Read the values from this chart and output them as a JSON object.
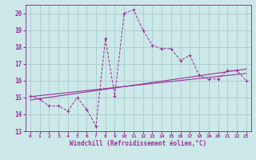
{
  "xlabel": "Windchill (Refroidissement éolien,°C)",
  "bg_color": "#cce8e8",
  "grid_color": "#aacccc",
  "line_color": "#993399",
  "x_data": [
    0,
    1,
    2,
    3,
    4,
    5,
    6,
    7,
    8,
    9,
    10,
    11,
    12,
    13,
    14,
    15,
    16,
    17,
    18,
    19,
    20,
    21,
    22,
    23
  ],
  "y_main": [
    15.1,
    14.9,
    14.5,
    14.5,
    14.2,
    15.0,
    14.3,
    13.3,
    18.5,
    15.1,
    20.0,
    20.2,
    19.0,
    18.1,
    17.9,
    17.9,
    17.2,
    17.5,
    16.3,
    16.1,
    16.1,
    16.6,
    16.6,
    16.0
  ],
  "y_line1": [
    14.85,
    14.93,
    15.01,
    15.09,
    15.17,
    15.25,
    15.33,
    15.41,
    15.49,
    15.57,
    15.65,
    15.73,
    15.81,
    15.89,
    15.97,
    16.05,
    16.13,
    16.21,
    16.29,
    16.37,
    16.45,
    16.53,
    16.61,
    16.69
  ],
  "y_line2": [
    15.05,
    15.11,
    15.17,
    15.23,
    15.29,
    15.35,
    15.41,
    15.47,
    15.53,
    15.59,
    15.65,
    15.71,
    15.77,
    15.83,
    15.89,
    15.95,
    16.01,
    16.07,
    16.13,
    16.19,
    16.25,
    16.31,
    16.37,
    16.43
  ],
  "xlim": [
    -0.5,
    23.5
  ],
  "ylim": [
    13,
    20.5
  ],
  "yticks": [
    13,
    14,
    15,
    16,
    17,
    18,
    19,
    20
  ],
  "xticks": [
    0,
    1,
    2,
    3,
    4,
    5,
    6,
    7,
    8,
    9,
    10,
    11,
    12,
    13,
    14,
    15,
    16,
    17,
    18,
    19,
    20,
    21,
    22,
    23
  ]
}
